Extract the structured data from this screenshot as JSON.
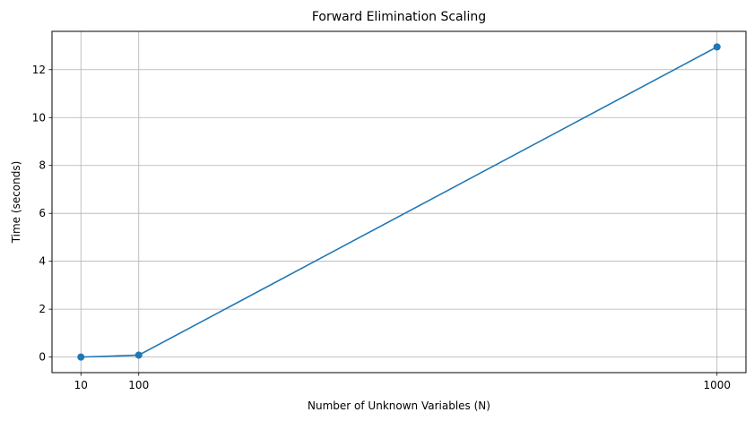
{
  "chart_data": {
    "type": "line",
    "title": "Forward Elimination Scaling",
    "xlabel": "Number of Unknown Variables (N)",
    "ylabel": "Time (seconds)",
    "x": [
      10,
      100,
      1000
    ],
    "series": [
      {
        "name": "Time",
        "values": [
          0.0,
          0.08,
          12.95
        ],
        "color": "#1f77b4"
      }
    ],
    "xticks": [
      10,
      100,
      1000
    ],
    "xtick_labels": [
      "10",
      "100",
      "1000"
    ],
    "yticks": [
      0,
      2,
      4,
      6,
      8,
      10,
      12
    ],
    "ytick_labels": [
      "0",
      "2",
      "4",
      "6",
      "8",
      "10",
      "12"
    ],
    "xlim": [
      -35,
      1045
    ],
    "ylim": [
      -0.65,
      13.6
    ],
    "grid": true,
    "marker": "circle"
  }
}
